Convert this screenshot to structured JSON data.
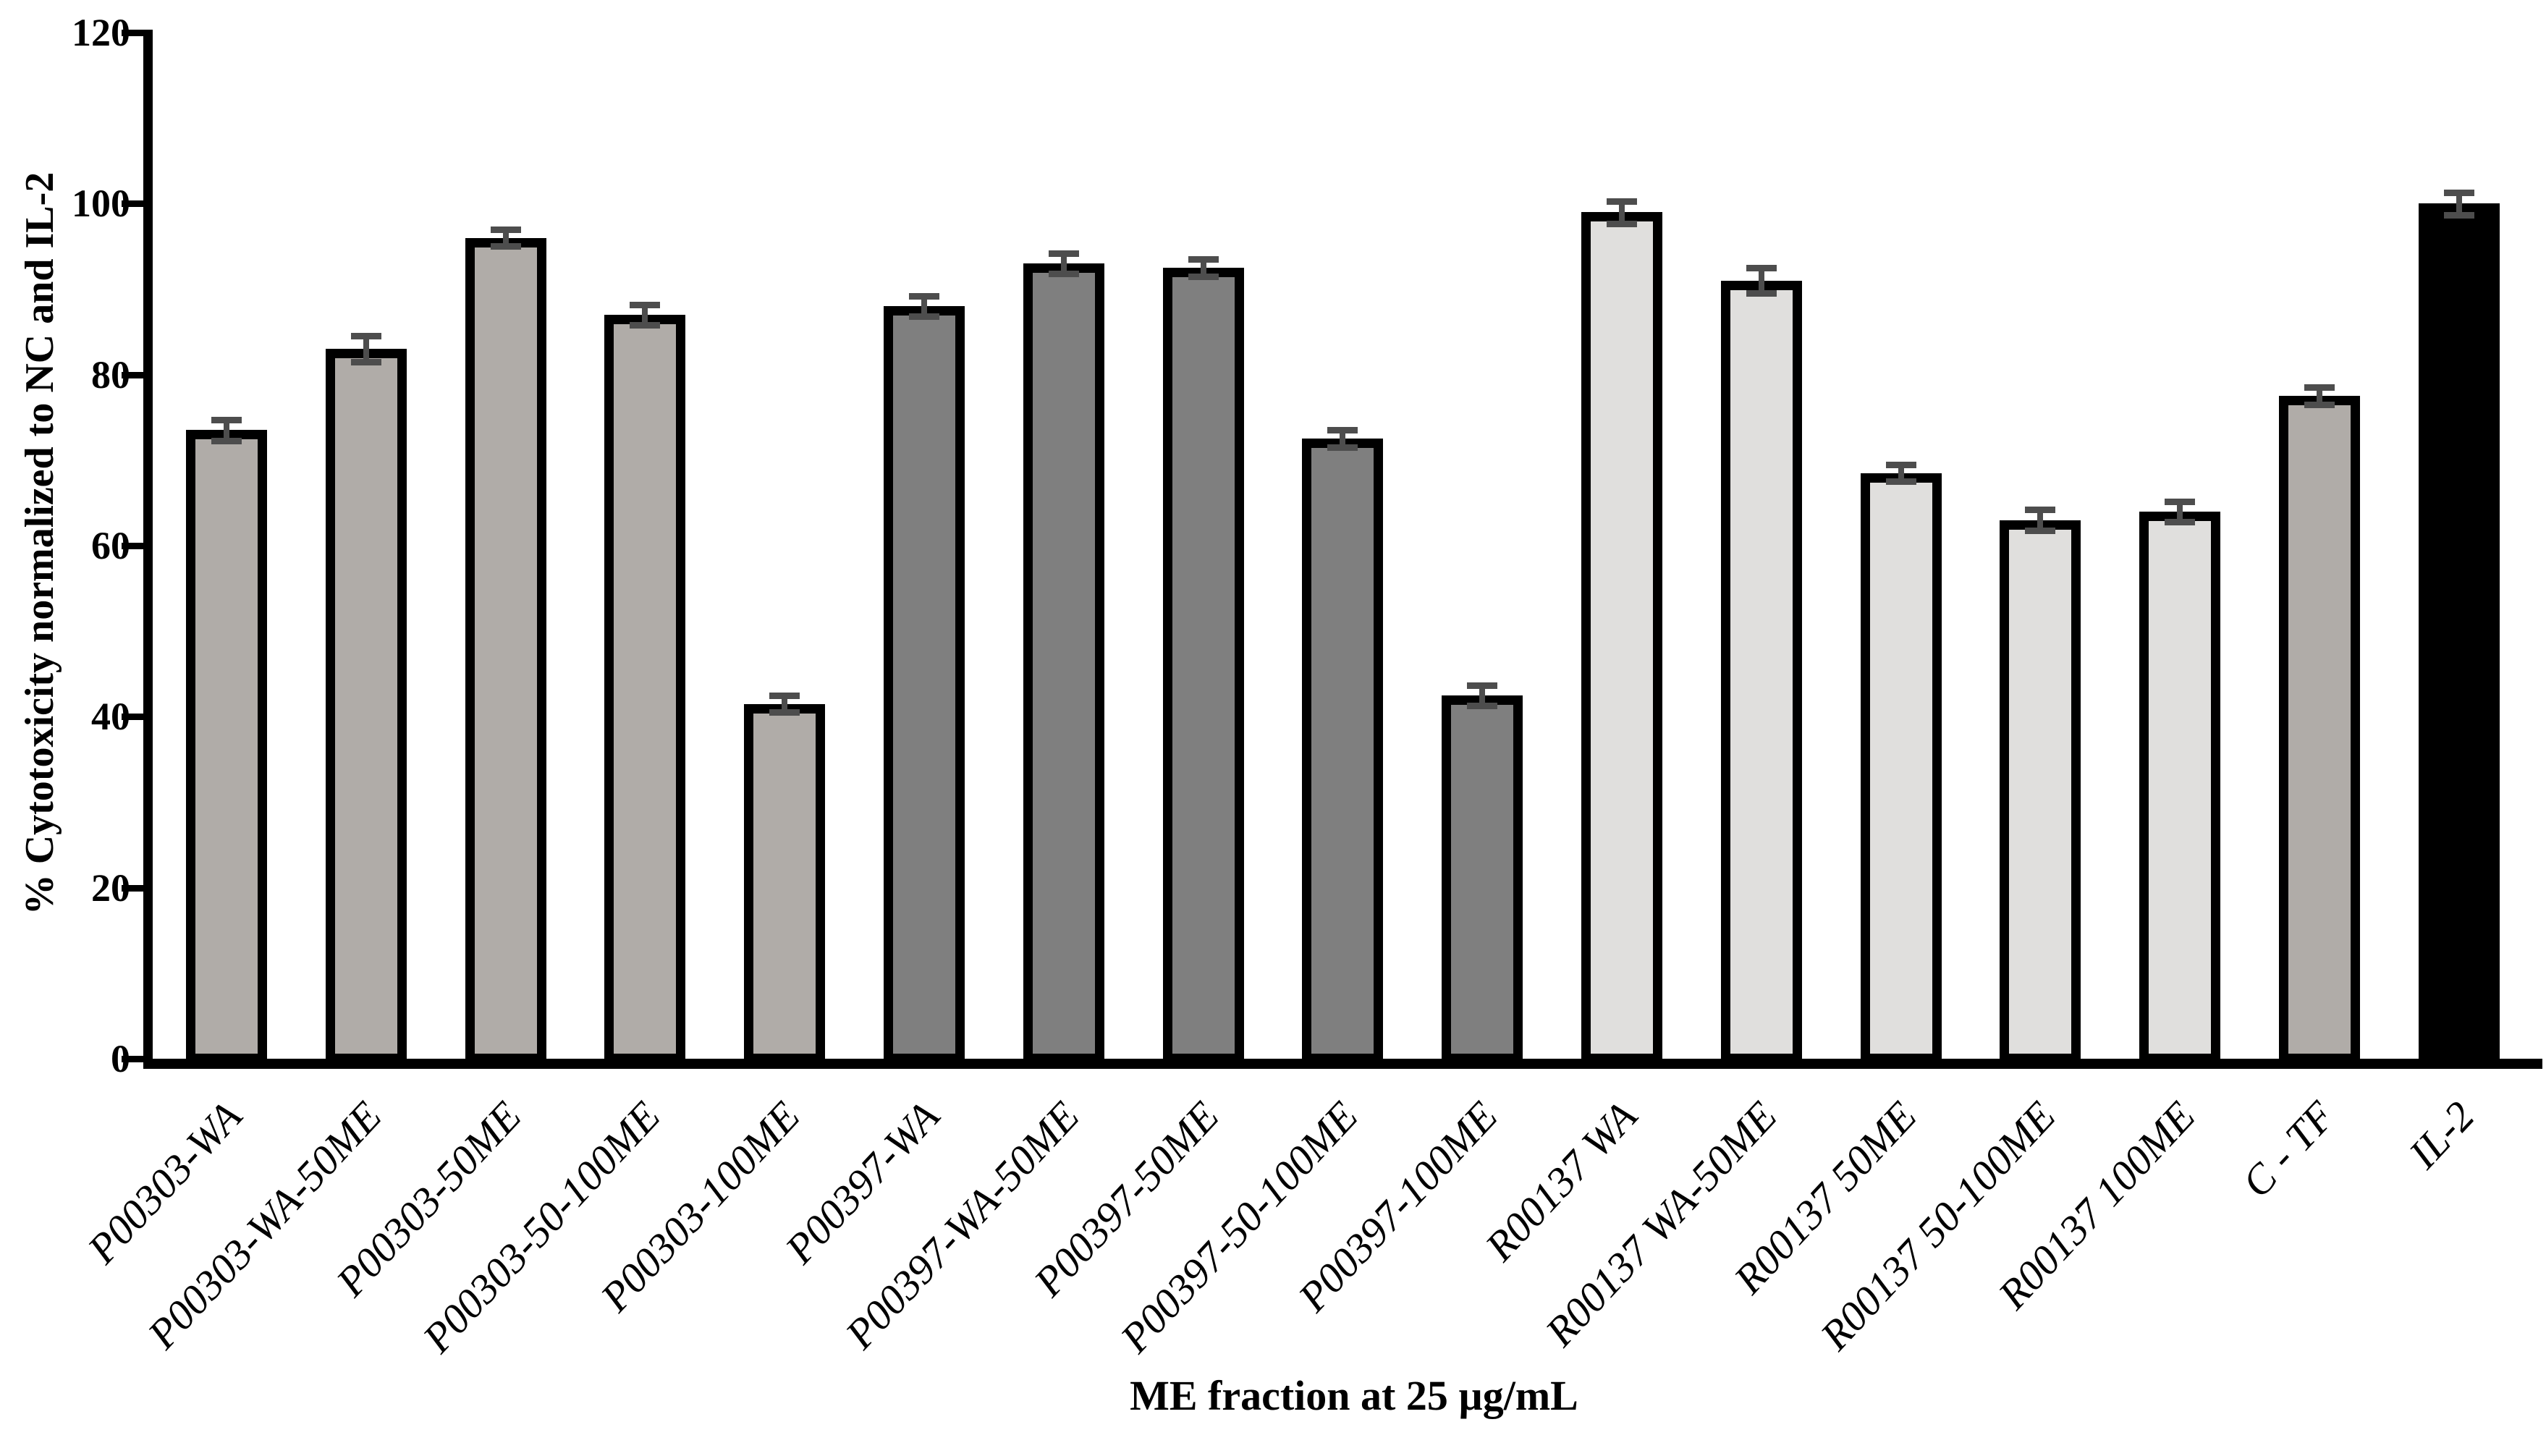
{
  "chart_data": {
    "type": "bar",
    "title": "",
    "xlabel": "ME fraction at 25 µg/mL",
    "ylabel": "% Cytotoxicity normalized to NC and IL-2",
    "ylim": [
      0,
      120
    ],
    "yticks": [
      0,
      20,
      40,
      60,
      80,
      100,
      120
    ],
    "grid": false,
    "legend": "none",
    "categories": [
      "P00303-WA",
      "P00303-WA-50ME",
      "P00303-50ME",
      "P00303-50-100ME",
      "P00303-100ME",
      "P00397-WA",
      "P00397-WA-50ME",
      "P00397-50ME",
      "P00397-50-100ME",
      "P00397-100ME",
      "R00137 WA",
      "R00137 WA-50ME",
      "R00137 50ME",
      "R00137 50-100ME",
      "R00137 100ME",
      "C - TF",
      "IL-2"
    ],
    "values": [
      73.5,
      83,
      96,
      87,
      41.5,
      88,
      93,
      92.5,
      72.5,
      42.5,
      99,
      91,
      68.5,
      63,
      64,
      77.5,
      100
    ],
    "errors": [
      1.2,
      1.5,
      1.0,
      1.2,
      1.0,
      1.2,
      1.2,
      1.0,
      1.0,
      1.2,
      1.3,
      1.5,
      1.0,
      1.2,
      1.2,
      1.0,
      1.3
    ],
    "bar_fill_colors": [
      "#b0aca8",
      "#b0aca8",
      "#b0aca8",
      "#b0aca8",
      "#b0aca8",
      "#7f7f7f",
      "#7f7f7f",
      "#7f7f7f",
      "#7f7f7f",
      "#7f7f7f",
      "#e0dfdd",
      "#e0dfdd",
      "#e0dfdd",
      "#e0dfdd",
      "#e0dfdd",
      "#b0aca8",
      "#000000"
    ],
    "bar_border_color": "#000000",
    "error_bar_color": "#4d4d4d",
    "axis_color": "#000000",
    "groups": [
      {
        "name": "P00303",
        "color": "#b0aca8"
      },
      {
        "name": "P00397",
        "color": "#7f7f7f"
      },
      {
        "name": "R00137",
        "color": "#e0dfdd"
      },
      {
        "name": "C - TF",
        "color": "#b0aca8"
      },
      {
        "name": "IL-2",
        "color": "#000000"
      }
    ]
  }
}
